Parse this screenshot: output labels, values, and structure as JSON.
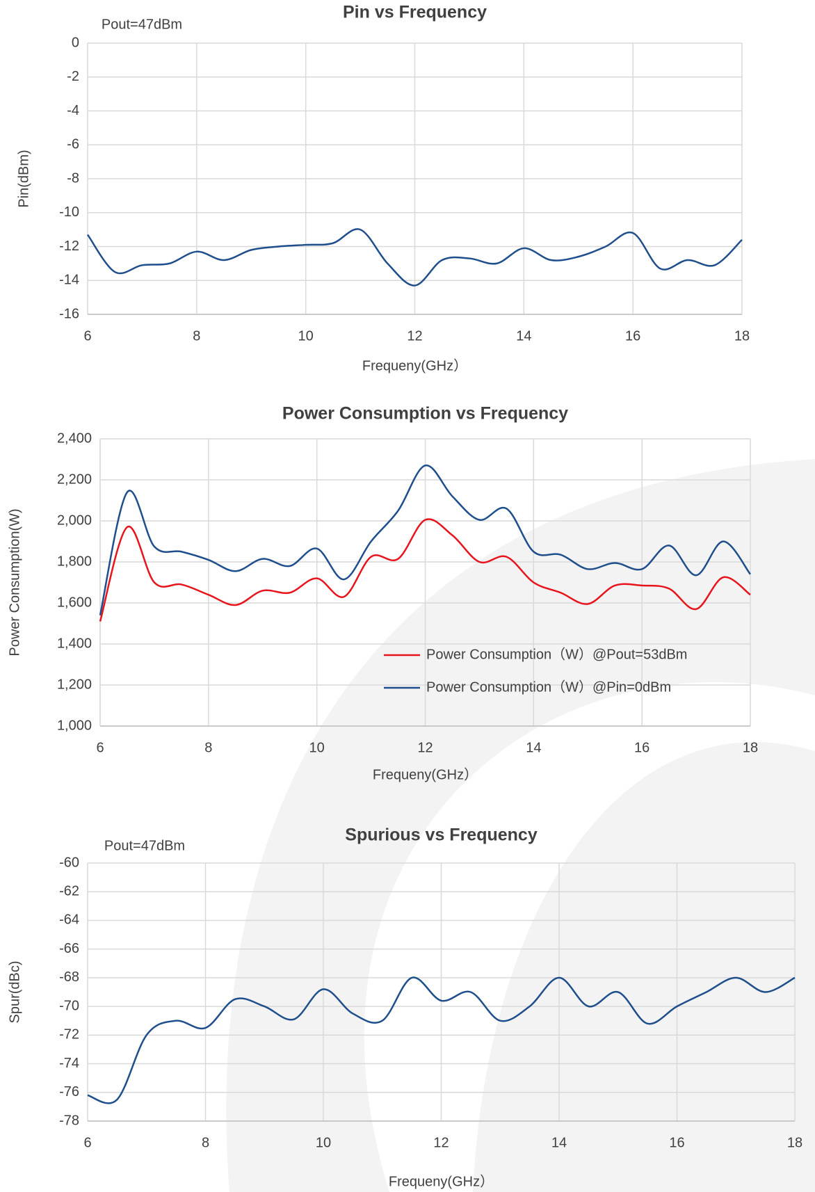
{
  "chart_data": [
    {
      "type": "line",
      "title": "Pin vs Frequency",
      "annotation": "Pout=47dBm",
      "x_label": "Frequeny(GHz）",
      "y_label": "Pin(dBm)",
      "x": [
        6,
        6.5,
        7,
        7.5,
        8,
        8.5,
        9,
        9.5,
        10,
        10.5,
        11,
        11.5,
        12,
        12.5,
        13,
        13.5,
        14,
        14.5,
        15,
        15.5,
        16,
        16.5,
        17,
        17.5,
        18
      ],
      "series": [
        {
          "color": "#1f4e8c",
          "values": [
            -11.3,
            -13.5,
            -13.1,
            -13.0,
            -12.3,
            -12.8,
            -12.2,
            -12.0,
            -11.9,
            -11.8,
            -11.0,
            -13.0,
            -14.3,
            -12.8,
            -12.7,
            -13.0,
            -12.1,
            -12.8,
            -12.6,
            -12.0,
            -11.2,
            -13.3,
            -12.8,
            -13.1,
            -11.6
          ]
        }
      ],
      "xlim": [
        6,
        18
      ],
      "xticks": [
        6,
        8,
        10,
        12,
        14,
        16,
        18
      ],
      "ylim": [
        -16,
        0
      ],
      "yticks": [
        -16,
        -14,
        -12,
        -10,
        -8,
        -6,
        -4,
        -2,
        0
      ],
      "grid": true
    },
    {
      "type": "line",
      "title": "Power Consumption vs Frequency",
      "x_label": "Frequeny(GHz）",
      "y_label": "Power Consumption(W)",
      "x": [
        6,
        6.5,
        7,
        7.5,
        8,
        8.5,
        9,
        9.5,
        10,
        10.5,
        11,
        11.5,
        12,
        12.5,
        13,
        13.5,
        14,
        14.5,
        15,
        15.5,
        16,
        16.5,
        17,
        17.5,
        18
      ],
      "series": [
        {
          "name": "Power Consumption（W）@Pout=53dBm",
          "color": "#e8141c",
          "values": [
            1510,
            1970,
            1700,
            1690,
            1640,
            1590,
            1660,
            1650,
            1720,
            1630,
            1825,
            1815,
            2005,
            1930,
            1800,
            1825,
            1700,
            1650,
            1595,
            1685,
            1685,
            1670,
            1570,
            1725,
            1640
          ]
        },
        {
          "name": "Power Consumption（W）@Pin=0dBm",
          "color": "#1f4e8c",
          "values": [
            1540,
            2140,
            1875,
            1850,
            1810,
            1755,
            1815,
            1780,
            1865,
            1715,
            1900,
            2050,
            2270,
            2120,
            2005,
            2060,
            1850,
            1835,
            1765,
            1795,
            1765,
            1880,
            1735,
            1900,
            1740
          ]
        }
      ],
      "xlim": [
        6,
        18
      ],
      "xticks": [
        6,
        8,
        10,
        12,
        14,
        16,
        18
      ],
      "ylim": [
        1000,
        2400
      ],
      "yticks": [
        {
          "value": 1000,
          "label": "1,000"
        },
        {
          "value": 1200,
          "label": "1,200"
        },
        {
          "value": 1400,
          "label": "1,400"
        },
        {
          "value": 1600,
          "label": "1,600"
        },
        {
          "value": 1800,
          "label": "1,800"
        },
        {
          "value": 2000,
          "label": "2,000"
        },
        {
          "value": 2200,
          "label": "2,200"
        },
        {
          "value": 2400,
          "label": "2,400"
        }
      ],
      "grid": true,
      "legend": "lower right"
    },
    {
      "type": "line",
      "title": "Spurious vs Frequency",
      "annotation": "Pout=47dBm",
      "x_label": "Frequeny(GHz）",
      "y_label": "Spur(dBc)",
      "x": [
        6,
        6.5,
        7,
        7.5,
        8,
        8.5,
        9,
        9.5,
        10,
        10.5,
        11,
        11.5,
        12,
        12.5,
        13,
        13.5,
        14,
        14.5,
        15,
        15.5,
        16,
        16.5,
        17,
        17.5,
        18
      ],
      "series": [
        {
          "color": "#1f4e8c",
          "values": [
            -76.2,
            -76.5,
            -72,
            -71,
            -71.5,
            -69.5,
            -70,
            -70.9,
            -68.8,
            -70.5,
            -71,
            -68,
            -69.6,
            -69,
            -71,
            -70,
            -68,
            -70,
            -69,
            -71.2,
            -70,
            -69,
            -68,
            -69,
            -68
          ]
        }
      ],
      "xlim": [
        6,
        18
      ],
      "xticks": [
        6,
        8,
        10,
        12,
        14,
        16,
        18
      ],
      "ylim": [
        -78,
        -60
      ],
      "yticks": [
        -78,
        -76,
        -74,
        -72,
        -70,
        -68,
        -66,
        -64,
        -62,
        -60
      ],
      "grid": true
    }
  ]
}
